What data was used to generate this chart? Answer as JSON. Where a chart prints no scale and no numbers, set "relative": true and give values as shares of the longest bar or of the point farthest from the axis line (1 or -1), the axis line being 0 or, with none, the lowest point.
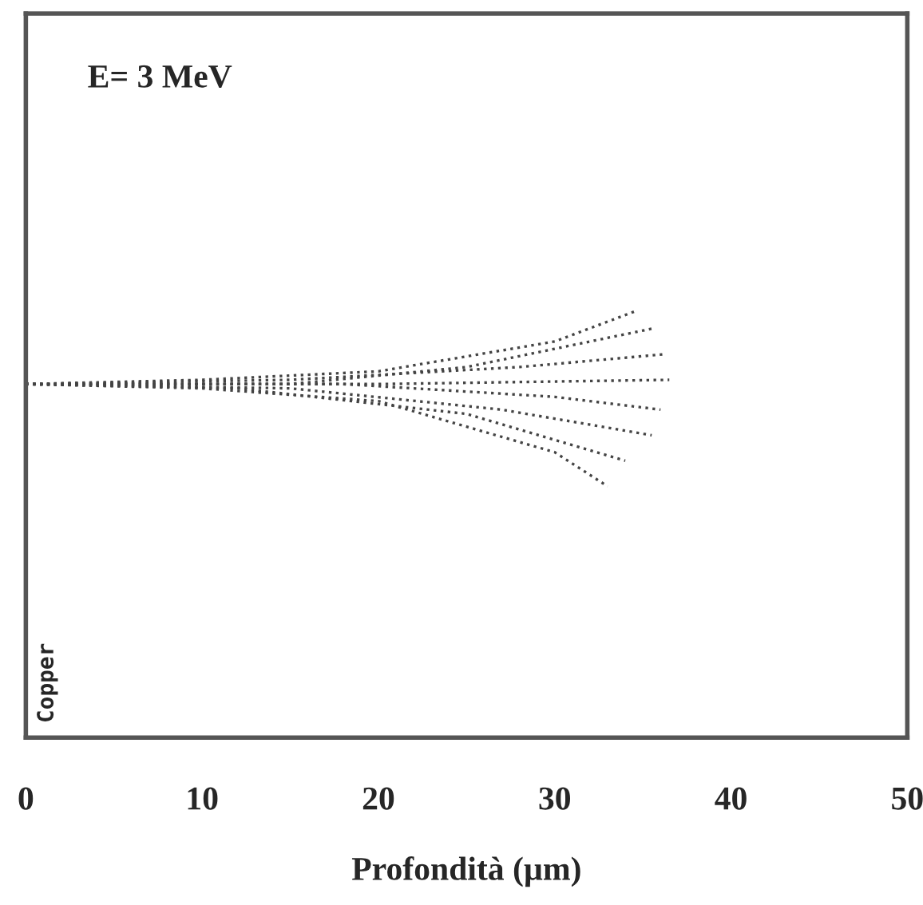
{
  "chart_data": {
    "type": "line",
    "title": "E= 3 MeV",
    "xlabel": "Profondità (µm)",
    "annotations": [
      "Copper"
    ],
    "xlim": [
      0,
      50
    ],
    "xticks": [
      0,
      10,
      20,
      30,
      40,
      50
    ],
    "relative": true,
    "tick_labels": "x",
    "grid": false,
    "legend": false,
    "line_style": "dotted",
    "marker": "none",
    "series": [
      {
        "color": "#444444",
        "x": [
          0,
          10,
          20,
          30,
          34.5
        ],
        "values": [
          0.83,
          0.84,
          0.86,
          0.93,
          1.0
        ]
      },
      {
        "color": "#444444",
        "x": [
          0,
          10,
          20,
          30,
          33
        ],
        "values": [
          0.83,
          0.82,
          0.79,
          0.67,
          0.59
        ]
      },
      {
        "color": "#444444",
        "x": [
          0,
          15,
          25,
          35.5
        ],
        "values": [
          0.83,
          0.83,
          0.87,
          0.96
        ]
      },
      {
        "color": "#444444",
        "x": [
          0,
          15,
          28,
          36.2
        ],
        "values": [
          0.83,
          0.84,
          0.87,
          0.9
        ]
      },
      {
        "color": "#444444",
        "x": [
          0,
          20,
          36.5
        ],
        "values": [
          0.83,
          0.83,
          0.84
        ]
      },
      {
        "color": "#444444",
        "x": [
          0,
          18,
          30,
          36
        ],
        "values": [
          0.83,
          0.83,
          0.8,
          0.77
        ]
      },
      {
        "color": "#444444",
        "x": [
          0,
          15,
          27,
          35.5
        ],
        "values": [
          0.83,
          0.82,
          0.77,
          0.71
        ]
      },
      {
        "color": "#444444",
        "x": [
          0,
          12,
          25,
          34
        ],
        "values": [
          0.83,
          0.82,
          0.76,
          0.65
        ]
      }
    ]
  }
}
